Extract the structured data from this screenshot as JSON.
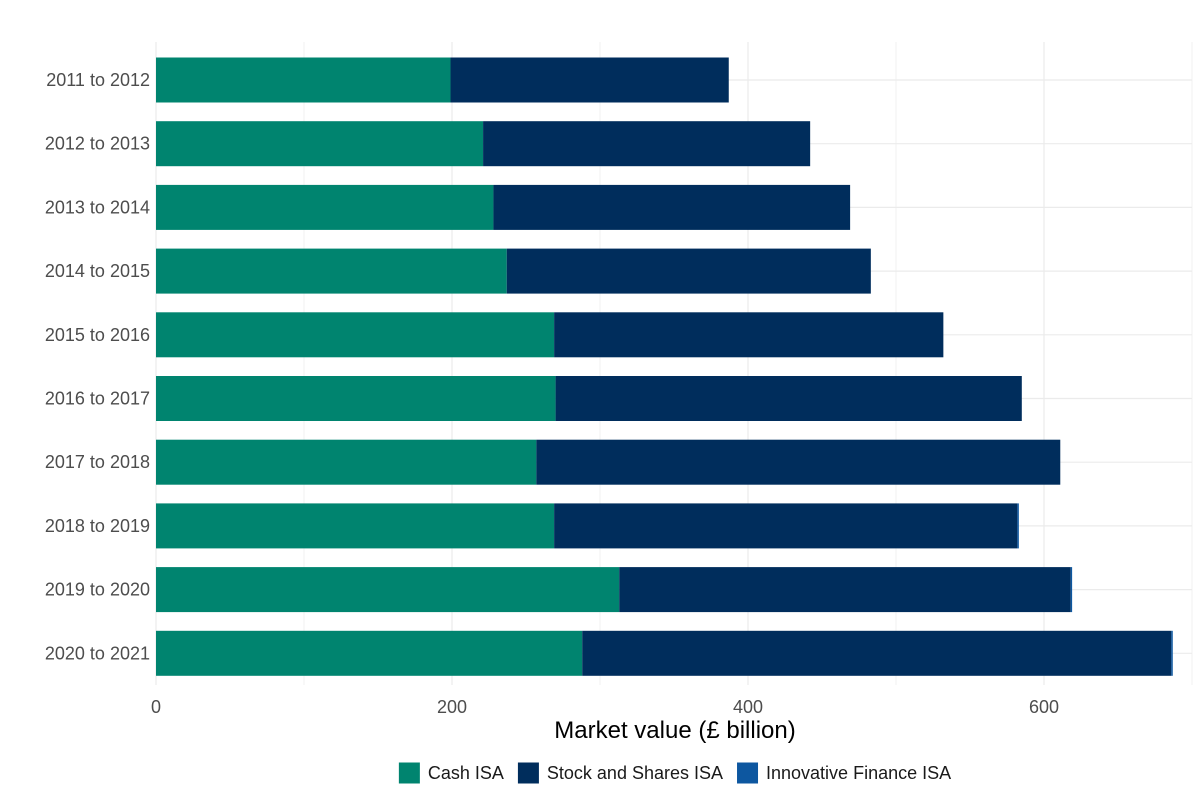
{
  "chart_data": {
    "type": "bar",
    "orientation": "horizontal",
    "stacked": true,
    "categories": [
      "2011 to 2012",
      "2012 to 2013",
      "2013 to 2014",
      "2014 to 2015",
      "2015 to 2016",
      "2016 to 2017",
      "2017 to 2018",
      "2018 to 2019",
      "2019 to 2020",
      "2020 to 2021"
    ],
    "series": [
      {
        "name": "Cash ISA",
        "color": "#00846f",
        "values": [
          199,
          221,
          228,
          237,
          269,
          270,
          257,
          269,
          313,
          288
        ]
      },
      {
        "name": "Stock and Shares ISA",
        "color": "#002d5c",
        "values": [
          188,
          221,
          241,
          246,
          263,
          315,
          354,
          313,
          305,
          398
        ]
      },
      {
        "name": "Innovative Finance ISA",
        "color": "#0d57a0",
        "values": [
          0,
          0,
          0,
          0,
          0,
          0,
          0,
          1,
          1,
          1
        ]
      }
    ],
    "xlabel": "Market value (£ billion)",
    "ylabel": "",
    "xlim": [
      0,
      700
    ],
    "xticks": [
      0,
      200,
      400,
      600
    ],
    "grid": true,
    "legend": {
      "position": "bottom",
      "entries": [
        "Cash ISA",
        "Stock and Shares ISA",
        "Innovative Finance ISA"
      ]
    }
  }
}
